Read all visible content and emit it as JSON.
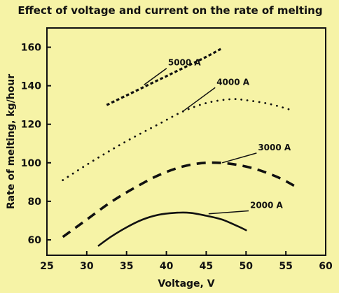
{
  "chart_data": {
    "type": "line",
    "title": "Effect of voltage and current on the rate of melting",
    "xlabel": "Voltage, V",
    "ylabel": "Rate of melting, kg/hour",
    "xlim": [
      25,
      60
    ],
    "ylim": [
      52,
      170
    ],
    "x_ticks": [
      25,
      30,
      35,
      40,
      45,
      50,
      55,
      60
    ],
    "y_ticks": [
      60,
      80,
      100,
      120,
      140,
      160
    ],
    "grid": false,
    "series": [
      {
        "name": "5000 A",
        "style": "dashed-short",
        "x": [
          32.5,
          35,
          37.5,
          40,
          42.5,
          45,
          47
        ],
        "y": [
          130,
          135,
          140,
          145,
          150,
          155,
          159.5
        ]
      },
      {
        "name": "4000 A",
        "style": "dotted",
        "x": [
          27,
          30,
          33,
          36,
          39,
          42,
          45,
          48,
          50,
          53,
          56
        ],
        "y": [
          91,
          99,
          106.5,
          113.5,
          120,
          126.5,
          131,
          133,
          132.5,
          130.5,
          127
        ]
      },
      {
        "name": "3000 A",
        "style": "dashed-long",
        "x": [
          27,
          30,
          33,
          36,
          39,
          42,
          45,
          48,
          51,
          54,
          56.5
        ],
        "y": [
          61.5,
          70.5,
          79.5,
          87,
          93.5,
          98,
          100,
          99.5,
          97,
          92.5,
          87
        ]
      },
      {
        "name": "2000 A",
        "style": "solid",
        "x": [
          31.5,
          33,
          35,
          37,
          39,
          41,
          43,
          45,
          47,
          49,
          50
        ],
        "y": [
          57,
          61.5,
          66.5,
          70.5,
          73,
          74,
          74,
          72.5,
          70.5,
          67,
          65
        ]
      }
    ],
    "annotations": [
      {
        "text": "5000 A",
        "label_x": 40.2,
        "label_y": 150.5,
        "point_x": 37.2,
        "point_y": 140.5
      },
      {
        "text": "4000 A",
        "label_x": 46.3,
        "label_y": 140.5,
        "point_x": 42.0,
        "point_y": 126.5
      },
      {
        "text": "3000 A",
        "label_x": 51.5,
        "label_y": 106.5,
        "point_x": 47.0,
        "point_y": 100.0
      },
      {
        "text": "2000 A",
        "label_x": 50.5,
        "label_y": 76.5,
        "point_x": 45.3,
        "point_y": 73.5
      }
    ]
  },
  "colors": {
    "background": "#f6f3a6",
    "line": "#111111"
  }
}
